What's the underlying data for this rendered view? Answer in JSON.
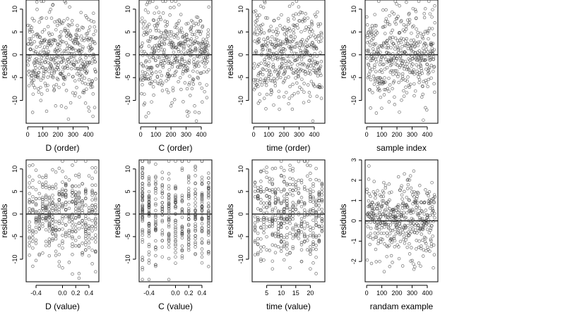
{
  "chart_data": [
    {
      "type": "scatter",
      "xlabel": "D (order)",
      "ylabel": "residuals",
      "xlim": [
        -10,
        470
      ],
      "ylim": [
        -15,
        12
      ],
      "xticks": [
        0,
        100,
        200,
        300,
        400
      ],
      "yticks": [
        -10,
        -5,
        0,
        5,
        10
      ],
      "zero_line": 0,
      "n": 450,
      "x_mode": "index",
      "y_sd": 5,
      "seed": 11
    },
    {
      "type": "scatter",
      "xlabel": "C (order)",
      "ylabel": "residuals",
      "xlim": [
        -10,
        470
      ],
      "ylim": [
        -15,
        12
      ],
      "xticks": [
        0,
        100,
        200,
        300,
        400
      ],
      "yticks": [
        -10,
        -5,
        0,
        5,
        10
      ],
      "zero_line": 0,
      "n": 450,
      "x_mode": "index",
      "y_sd": 5,
      "seed": 23
    },
    {
      "type": "scatter",
      "xlabel": "time (order)",
      "ylabel": "residuals",
      "xlim": [
        -10,
        470
      ],
      "ylim": [
        -15,
        12
      ],
      "xticks": [
        0,
        100,
        200,
        300,
        400
      ],
      "yticks": [
        -10,
        -5,
        0,
        5,
        10
      ],
      "zero_line": 0,
      "n": 450,
      "x_mode": "index",
      "y_sd": 5,
      "seed": 37
    },
    {
      "type": "scatter",
      "xlabel": "sample index",
      "ylabel": "residuals",
      "xlim": [
        -10,
        470
      ],
      "ylim": [
        -15,
        12
      ],
      "xticks": [
        0,
        100,
        200,
        300,
        400
      ],
      "yticks": [
        -10,
        -5,
        0,
        5,
        10
      ],
      "zero_line": 0,
      "n": 450,
      "x_mode": "index",
      "y_sd": 5,
      "seed": 41
    },
    {
      "type": "scatter",
      "xlabel": "D (value)",
      "ylabel": "residuals",
      "xlim": [
        -0.55,
        0.55
      ],
      "ylim": [
        -15,
        12
      ],
      "xticks": [
        -0.4,
        0,
        0.2,
        0.4
      ],
      "xtick_labels": [
        "-0.4",
        "0.0",
        "0.2",
        "0.4"
      ],
      "yticks": [
        -10,
        -5,
        0,
        5,
        10
      ],
      "zero_line": 0,
      "n": 450,
      "x_mode": "range",
      "x_range": [
        -0.5,
        0.5
      ],
      "x_step": 0.05,
      "y_sd": 5,
      "seed": 53
    },
    {
      "type": "scatter",
      "xlabel": "C (value)",
      "ylabel": "residuals",
      "xlim": [
        -0.55,
        0.55
      ],
      "ylim": [
        -15,
        12
      ],
      "xticks": [
        -0.4,
        0,
        0.2,
        0.4
      ],
      "xtick_labels": [
        "-0.4",
        "0.0",
        "0.2",
        "0.4"
      ],
      "yticks": [
        -10,
        -5,
        0,
        5,
        10
      ],
      "zero_line": 0,
      "n": 450,
      "x_mode": "range",
      "x_range": [
        -0.5,
        0.5
      ],
      "x_step": 0.1,
      "y_sd": 5,
      "seed": 67
    },
    {
      "type": "scatter",
      "xlabel": "time (value)",
      "ylabel": "residuals",
      "xlim": [
        0,
        25
      ],
      "ylim": [
        -15,
        12
      ],
      "xticks": [
        5,
        10,
        15,
        20
      ],
      "yticks": [
        -10,
        -5,
        0,
        5,
        10
      ],
      "zero_line": 0,
      "n": 450,
      "x_mode": "range",
      "x_range": [
        1,
        24
      ],
      "x_step": 1,
      "y_sd": 5,
      "seed": 79
    },
    {
      "type": "scatter",
      "xlabel": "randam example",
      "ylabel": "residuals",
      "xlim": [
        -10,
        470
      ],
      "ylim": [
        -3,
        3
      ],
      "xticks": [
        0,
        100,
        200,
        300,
        400
      ],
      "yticks": [
        -2,
        -1,
        0,
        1,
        2,
        3
      ],
      "zero_line": 0,
      "n": 450,
      "x_mode": "index",
      "y_sd": 1,
      "seed": 97
    }
  ]
}
